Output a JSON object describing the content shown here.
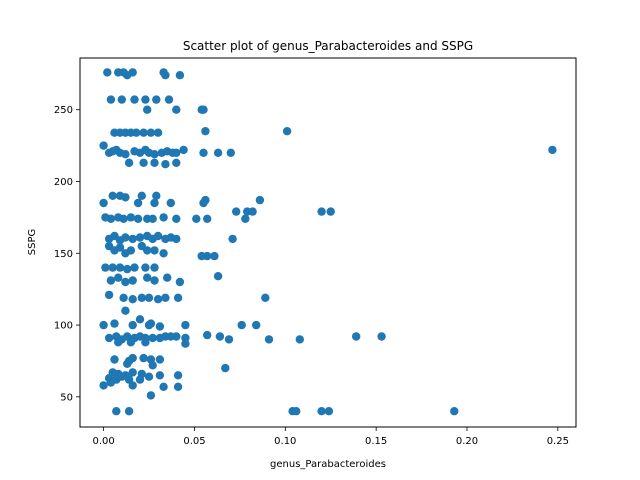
{
  "chart_data": {
    "type": "scatter",
    "title": "Scatter plot of genus_Parabacteroides and SSPG",
    "xlabel": "genus_Parabacteroides",
    "ylabel": "SSPG",
    "xlim": [
      -0.013,
      0.26
    ],
    "ylim": [
      29,
      286
    ],
    "xticks": [
      0.0,
      0.05,
      0.1,
      0.15,
      0.2,
      0.25
    ],
    "xtick_labels": [
      "0.00",
      "0.05",
      "0.10",
      "0.15",
      "0.20",
      "0.25"
    ],
    "yticks": [
      50,
      100,
      150,
      200,
      250
    ],
    "ytick_labels": [
      "50",
      "100",
      "150",
      "200",
      "250"
    ],
    "grid": false,
    "color": "#1f77b4",
    "points": [
      [
        0.002,
        276
      ],
      [
        0.008,
        276
      ],
      [
        0.011,
        276
      ],
      [
        0.013,
        274
      ],
      [
        0.016,
        276
      ],
      [
        0.033,
        276
      ],
      [
        0.034,
        274
      ],
      [
        0.042,
        274
      ],
      [
        0.004,
        257
      ],
      [
        0.01,
        257
      ],
      [
        0.017,
        257
      ],
      [
        0.023,
        257
      ],
      [
        0.029,
        257
      ],
      [
        0.036,
        257
      ],
      [
        0.054,
        250
      ],
      [
        0.055,
        250
      ],
      [
        0.024,
        250
      ],
      [
        0.04,
        250
      ],
      [
        0.006,
        234
      ],
      [
        0.009,
        234
      ],
      [
        0.012,
        234
      ],
      [
        0.015,
        234
      ],
      [
        0.018,
        234
      ],
      [
        0.022,
        234
      ],
      [
        0.026,
        234
      ],
      [
        0.03,
        234
      ],
      [
        0.056,
        235
      ],
      [
        0.101,
        235
      ],
      [
        0.0,
        225
      ],
      [
        0.003,
        220
      ],
      [
        0.005,
        221
      ],
      [
        0.007,
        222
      ],
      [
        0.009,
        220
      ],
      [
        0.012,
        219
      ],
      [
        0.017,
        221
      ],
      [
        0.02,
        220
      ],
      [
        0.023,
        222
      ],
      [
        0.025,
        220
      ],
      [
        0.028,
        219
      ],
      [
        0.032,
        220
      ],
      [
        0.035,
        221
      ],
      [
        0.038,
        220
      ],
      [
        0.04,
        220
      ],
      [
        0.044,
        222
      ],
      [
        0.055,
        220
      ],
      [
        0.063,
        220
      ],
      [
        0.07,
        220
      ],
      [
        0.247,
        222
      ],
      [
        0.014,
        213
      ],
      [
        0.022,
        213
      ],
      [
        0.028,
        213
      ],
      [
        0.034,
        212
      ],
      [
        0.04,
        213
      ],
      [
        0.005,
        190
      ],
      [
        0.009,
        190
      ],
      [
        0.012,
        189
      ],
      [
        0.021,
        190
      ],
      [
        0.029,
        190
      ],
      [
        0.056,
        187
      ],
      [
        0.086,
        187
      ],
      [
        0.0,
        185
      ],
      [
        0.019,
        185
      ],
      [
        0.028,
        185
      ],
      [
        0.037,
        185
      ],
      [
        0.055,
        185
      ],
      [
        0.001,
        175
      ],
      [
        0.004,
        174
      ],
      [
        0.008,
        175
      ],
      [
        0.011,
        174
      ],
      [
        0.015,
        175
      ],
      [
        0.019,
        174
      ],
      [
        0.024,
        174
      ],
      [
        0.027,
        174
      ],
      [
        0.033,
        175
      ],
      [
        0.04,
        174
      ],
      [
        0.051,
        174
      ],
      [
        0.057,
        174
      ],
      [
        0.073,
        179
      ],
      [
        0.079,
        179
      ],
      [
        0.082,
        179
      ],
      [
        0.078,
        174
      ],
      [
        0.12,
        179
      ],
      [
        0.125,
        179
      ],
      [
        0.003,
        160
      ],
      [
        0.006,
        162
      ],
      [
        0.009,
        159
      ],
      [
        0.012,
        161
      ],
      [
        0.016,
        160
      ],
      [
        0.02,
        161
      ],
      [
        0.024,
        162
      ],
      [
        0.027,
        160
      ],
      [
        0.03,
        162
      ],
      [
        0.034,
        160
      ],
      [
        0.037,
        161
      ],
      [
        0.04,
        160
      ],
      [
        0.071,
        160
      ],
      [
        0.003,
        155
      ],
      [
        0.006,
        152
      ],
      [
        0.009,
        154
      ],
      [
        0.012,
        150
      ],
      [
        0.015,
        152
      ],
      [
        0.021,
        155
      ],
      [
        0.024,
        152
      ],
      [
        0.028,
        152
      ],
      [
        0.033,
        150
      ],
      [
        0.054,
        148
      ],
      [
        0.057,
        148
      ],
      [
        0.061,
        148
      ],
      [
        0.001,
        140
      ],
      [
        0.005,
        140
      ],
      [
        0.009,
        140
      ],
      [
        0.013,
        139
      ],
      [
        0.017,
        140
      ],
      [
        0.023,
        140
      ],
      [
        0.028,
        140
      ],
      [
        0.004,
        131
      ],
      [
        0.008,
        133
      ],
      [
        0.012,
        130
      ],
      [
        0.016,
        131
      ],
      [
        0.024,
        133
      ],
      [
        0.028,
        131
      ],
      [
        0.035,
        133
      ],
      [
        0.042,
        130
      ],
      [
        0.063,
        134
      ],
      [
        0.003,
        121
      ],
      [
        0.011,
        119
      ],
      [
        0.016,
        118
      ],
      [
        0.021,
        119
      ],
      [
        0.025,
        119
      ],
      [
        0.03,
        118
      ],
      [
        0.034,
        119
      ],
      [
        0.041,
        119
      ],
      [
        0.089,
        119
      ],
      [
        0.012,
        110
      ],
      [
        0.02,
        104
      ],
      [
        0.026,
        101
      ],
      [
        0.0,
        100
      ],
      [
        0.006,
        101
      ],
      [
        0.016,
        100
      ],
      [
        0.025,
        100
      ],
      [
        0.031,
        99
      ],
      [
        0.045,
        100
      ],
      [
        0.076,
        100
      ],
      [
        0.084,
        100
      ],
      [
        0.003,
        91
      ],
      [
        0.007,
        92
      ],
      [
        0.01,
        90
      ],
      [
        0.013,
        92
      ],
      [
        0.017,
        91
      ],
      [
        0.02,
        92
      ],
      [
        0.023,
        91
      ],
      [
        0.027,
        91
      ],
      [
        0.031,
        91
      ],
      [
        0.034,
        92
      ],
      [
        0.037,
        92
      ],
      [
        0.04,
        92
      ],
      [
        0.045,
        91
      ],
      [
        0.057,
        93
      ],
      [
        0.064,
        92
      ],
      [
        0.069,
        90
      ],
      [
        0.091,
        90
      ],
      [
        0.108,
        90
      ],
      [
        0.139,
        92
      ],
      [
        0.153,
        92
      ],
      [
        0.008,
        88
      ],
      [
        0.015,
        88
      ],
      [
        0.023,
        88
      ],
      [
        0.045,
        87
      ],
      [
        0.006,
        76
      ],
      [
        0.014,
        75
      ],
      [
        0.016,
        77
      ],
      [
        0.022,
        77
      ],
      [
        0.026,
        76
      ],
      [
        0.031,
        76
      ],
      [
        0.013,
        73
      ],
      [
        0.027,
        72
      ],
      [
        0.067,
        70
      ],
      [
        0.005,
        67
      ],
      [
        0.008,
        66
      ],
      [
        0.012,
        65
      ],
      [
        0.016,
        67
      ],
      [
        0.021,
        66
      ],
      [
        0.025,
        64
      ],
      [
        0.031,
        65
      ],
      [
        0.041,
        65
      ],
      [
        0.003,
        63
      ],
      [
        0.007,
        62
      ],
      [
        0.01,
        64
      ],
      [
        0.014,
        62
      ],
      [
        0.02,
        62
      ],
      [
        0.0,
        58
      ],
      [
        0.004,
        60
      ],
      [
        0.016,
        58
      ],
      [
        0.033,
        57
      ],
      [
        0.041,
        57
      ],
      [
        0.026,
        51
      ],
      [
        0.007,
        40
      ],
      [
        0.014,
        40
      ],
      [
        0.104,
        40
      ],
      [
        0.106,
        40
      ],
      [
        0.12,
        40
      ],
      [
        0.124,
        40
      ],
      [
        0.193,
        40
      ]
    ]
  }
}
